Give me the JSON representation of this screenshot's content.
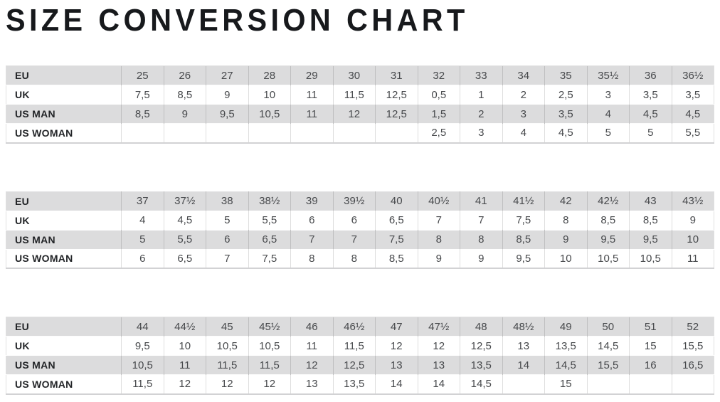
{
  "page_title": "SIZE CONVERSION CHART",
  "colors": {
    "shaded_row_bg": "#dcdcdd",
    "plain_row_bg": "#ffffff",
    "label_text": "#232528",
    "value_text": "#47494c",
    "title_text": "#17191c",
    "grid_line": "rgba(0,0,0,0.13)"
  },
  "tables": [
    {
      "rows": [
        {
          "label": "EU",
          "values": [
            "25",
            "26",
            "27",
            "28",
            "29",
            "30",
            "31",
            "32",
            "33",
            "34",
            "35",
            "35½",
            "36",
            "36½"
          ]
        },
        {
          "label": "UK",
          "values": [
            "7,5",
            "8,5",
            "9",
            "10",
            "11",
            "11,5",
            "12,5",
            "0,5",
            "1",
            "2",
            "2,5",
            "3",
            "3,5",
            "3,5"
          ]
        },
        {
          "label": "US MAN",
          "values": [
            "8,5",
            "9",
            "9,5",
            "10,5",
            "11",
            "12",
            "12,5",
            "1,5",
            "2",
            "3",
            "3,5",
            "4",
            "4,5",
            "4,5"
          ]
        },
        {
          "label": "US WOMAN",
          "values": [
            "",
            "",
            "",
            "",
            "",
            "",
            "",
            "2,5",
            "3",
            "4",
            "4,5",
            "5",
            "5",
            "5,5"
          ]
        }
      ]
    },
    {
      "rows": [
        {
          "label": "EU",
          "values": [
            "37",
            "37½",
            "38",
            "38½",
            "39",
            "39½",
            "40",
            "40½",
            "41",
            "41½",
            "42",
            "42½",
            "43",
            "43½"
          ]
        },
        {
          "label": "UK",
          "values": [
            "4",
            "4,5",
            "5",
            "5,5",
            "6",
            "6",
            "6,5",
            "7",
            "7",
            "7,5",
            "8",
            "8,5",
            "8,5",
            "9"
          ]
        },
        {
          "label": "US MAN",
          "values": [
            "5",
            "5,5",
            "6",
            "6,5",
            "7",
            "7",
            "7,5",
            "8",
            "8",
            "8,5",
            "9",
            "9,5",
            "9,5",
            "10"
          ]
        },
        {
          "label": "US WOMAN",
          "values": [
            "6",
            "6,5",
            "7",
            "7,5",
            "8",
            "8",
            "8,5",
            "9",
            "9",
            "9,5",
            "10",
            "10,5",
            "10,5",
            "11"
          ]
        }
      ]
    },
    {
      "rows": [
        {
          "label": "EU",
          "values": [
            "44",
            "44½",
            "45",
            "45½",
            "46",
            "46½",
            "47",
            "47½",
            "48",
            "48½",
            "49",
            "50",
            "51",
            "52"
          ]
        },
        {
          "label": "UK",
          "values": [
            "9,5",
            "10",
            "10,5",
            "10,5",
            "11",
            "11,5",
            "12",
            "12",
            "12,5",
            "13",
            "13,5",
            "14,5",
            "15",
            "15,5"
          ]
        },
        {
          "label": "US MAN",
          "values": [
            "10,5",
            "11",
            "11,5",
            "11,5",
            "12",
            "12,5",
            "13",
            "13",
            "13,5",
            "14",
            "14,5",
            "15,5",
            "16",
            "16,5"
          ]
        },
        {
          "label": "US WOMAN",
          "values": [
            "11,5",
            "12",
            "12",
            "12",
            "13",
            "13,5",
            "14",
            "14",
            "14,5",
            "",
            "15",
            "",
            "",
            ""
          ]
        }
      ]
    }
  ]
}
